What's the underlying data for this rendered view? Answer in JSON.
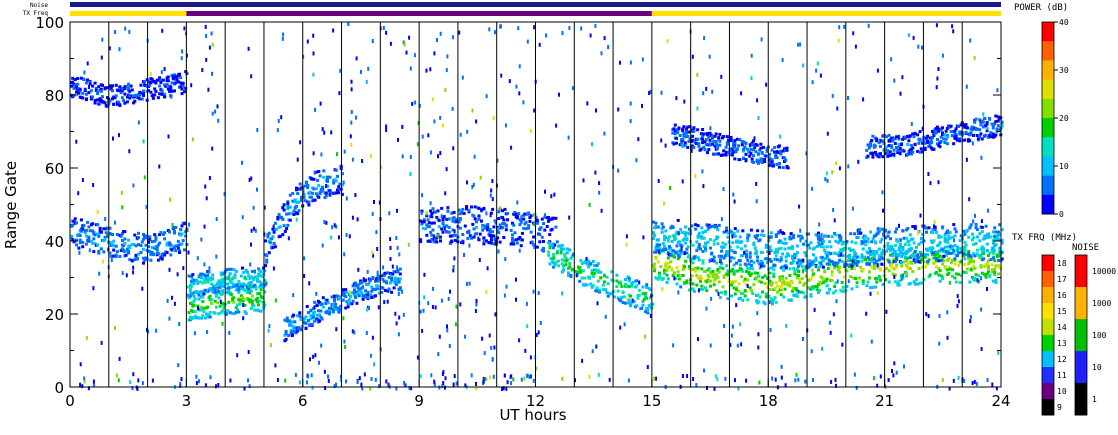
{
  "chart_data": {
    "type": "heatmap",
    "title": "",
    "xlabel": "UT hours",
    "ylabel": "Range Gate",
    "xlim": [
      0,
      24
    ],
    "ylim": [
      0,
      100
    ],
    "x_ticks": [
      "0",
      "3",
      "6",
      "9",
      "12",
      "15",
      "18",
      "21",
      "24"
    ],
    "y_ticks": [
      "0",
      "20",
      "40",
      "60",
      "80",
      "100"
    ],
    "scan_boundaries_hours": [
      1,
      2,
      3,
      4,
      5,
      6,
      7,
      8,
      9,
      10,
      11,
      12,
      13,
      14,
      15,
      16,
      17,
      18,
      19,
      20,
      21,
      22,
      23
    ],
    "noise_label": "Noise",
    "txfreq_label": "TX Freq",
    "tx_freq_segments": [
      {
        "from": 0,
        "to": 3,
        "freq_mhz": 15.5
      },
      {
        "from": 3,
        "to": 15,
        "freq_mhz": 10.5
      },
      {
        "from": 15,
        "to": 24,
        "freq_mhz": 15.5
      }
    ],
    "echo_bands": [
      {
        "from": 0.0,
        "to": 3.0,
        "center": [
          43,
          40,
          38,
          42
        ],
        "width": 4,
        "power_db": 8
      },
      {
        "from": 0.0,
        "to": 3.0,
        "center": [
          83,
          80,
          82,
          84
        ],
        "width": 3,
        "power_db": 4
      },
      {
        "from": 3.0,
        "to": 5.0,
        "center": [
          22,
          24,
          25
        ],
        "width": 4,
        "power_db": 20
      },
      {
        "from": 3.0,
        "to": 5.0,
        "center": [
          28,
          30,
          30
        ],
        "width": 3,
        "power_db": 14
      },
      {
        "from": 5.0,
        "to": 7.0,
        "center": [
          37,
          50,
          56,
          57
        ],
        "width": 4,
        "power_db": 8
      },
      {
        "from": 5.5,
        "to": 8.5,
        "center": [
          16,
          22,
          27,
          30
        ],
        "width": 3,
        "power_db": 9
      },
      {
        "from": 9.0,
        "to": 12.5,
        "center": [
          44,
          45,
          44,
          42
        ],
        "width": 5,
        "power_db": 6
      },
      {
        "from": 12.3,
        "to": 15.0,
        "center": [
          38,
          32,
          28,
          24
        ],
        "width": 4,
        "power_db": 18
      },
      {
        "from": 15.0,
        "to": 24.0,
        "center": [
          35,
          30,
          28,
          31,
          33,
          34,
          34
        ],
        "width": 5,
        "power_db": 25
      },
      {
        "from": 15.0,
        "to": 24.0,
        "center": [
          42,
          40,
          38,
          38,
          39,
          40,
          40
        ],
        "width": 5,
        "power_db": 12
      },
      {
        "from": 15.5,
        "to": 18.5,
        "center": [
          70,
          66,
          63
        ],
        "width": 3,
        "power_db": 6
      },
      {
        "from": 20.5,
        "to": 24.0,
        "center": [
          66,
          67,
          70,
          72
        ],
        "width": 3,
        "power_db": 6
      }
    ],
    "colorbars": [
      {
        "title": "POWER (dB)",
        "range": [
          0,
          40
        ],
        "labels": [
          "40",
          "30",
          "20",
          "10",
          "0"
        ],
        "colors": [
          "#0000ff",
          "#0070ff",
          "#00c0ff",
          "#00e0c0",
          "#00d000",
          "#80e000",
          "#e0e000",
          "#ffb000",
          "#ff6000",
          "#ff0000"
        ]
      },
      {
        "title": "TX FRQ (MHz)",
        "labels": [
          "18",
          "17",
          "16",
          "15",
          "14",
          "13",
          "12",
          "11",
          "10",
          "9"
        ],
        "colors": [
          "#ff0000",
          "#ff6000",
          "#ffb000",
          "#ffe000",
          "#c0e000",
          "#00d000",
          "#00c0ff",
          "#2030ff",
          "#6a0080",
          "#000000"
        ]
      },
      {
        "title": "NOISE",
        "labels": [
          "10000",
          "1000",
          "100",
          "10",
          "1"
        ],
        "colors": [
          "#ff0000",
          "#ffb000",
          "#00c000",
          "#2020ff",
          "#000000"
        ]
      }
    ],
    "grid": false,
    "legend": "right"
  }
}
